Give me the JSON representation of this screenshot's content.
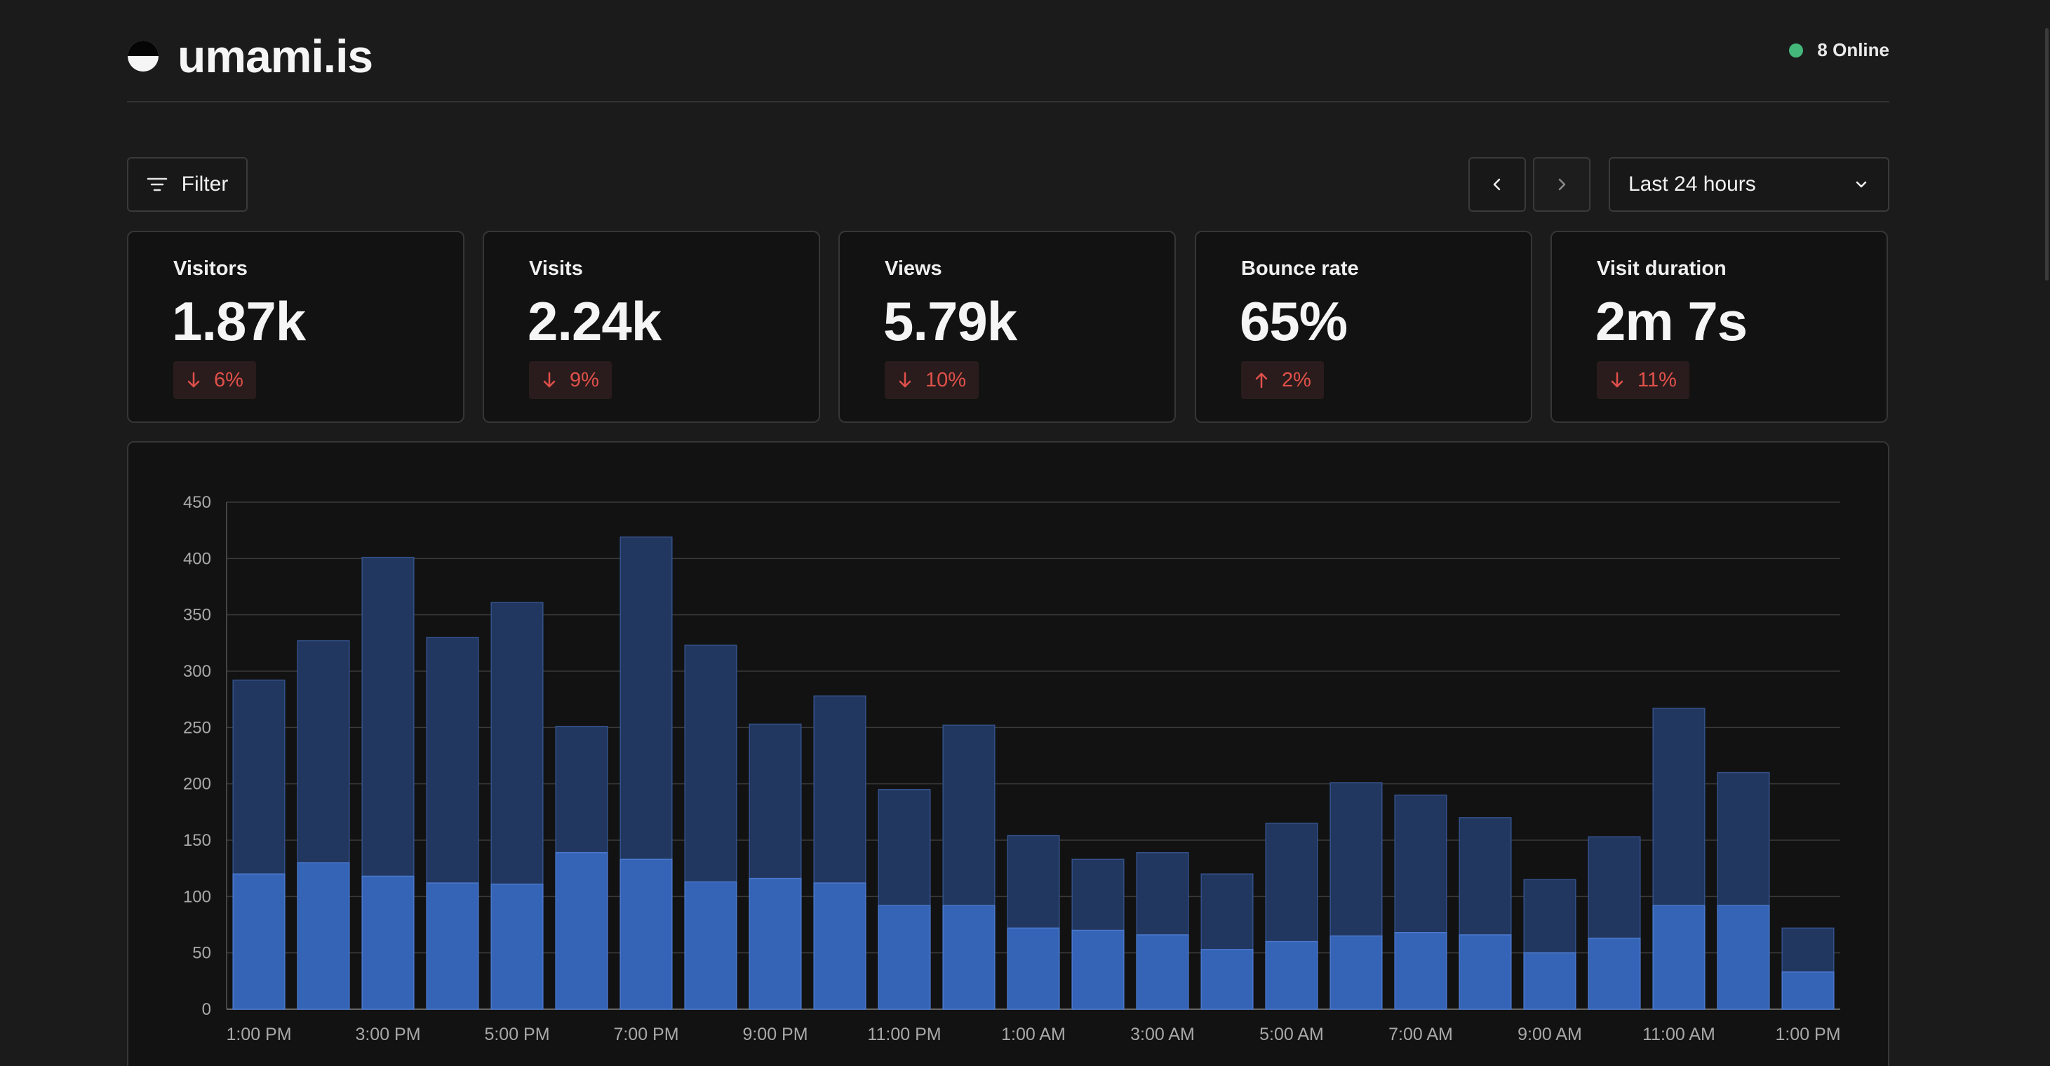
{
  "brand": {
    "name": "umami.is"
  },
  "online": {
    "label": "8 Online",
    "color": "#44b87b"
  },
  "toolbar": {
    "filter_label": "Filter",
    "icons": {
      "filter": "filter-icon",
      "prev": "chevron-left-icon",
      "next": "chevron-right-icon",
      "dropdown": "chevron-down-icon"
    },
    "date_range": "Last 24 hours"
  },
  "metrics": [
    {
      "label": "Visitors",
      "value": "1.87k",
      "change": "6%",
      "direction": "down"
    },
    {
      "label": "Visits",
      "value": "2.24k",
      "change": "9%",
      "direction": "down"
    },
    {
      "label": "Views",
      "value": "5.79k",
      "change": "10%",
      "direction": "down"
    },
    {
      "label": "Bounce rate",
      "value": "65%",
      "change": "2%",
      "direction": "up"
    },
    {
      "label": "Visit duration",
      "value": "2m 7s",
      "change": "11%",
      "direction": "down"
    }
  ],
  "colors": {
    "views_fill": "#22375f",
    "views_stroke": "#34518a",
    "visitors_fill": "#3564b6",
    "visitors_stroke": "#4a78cc",
    "negative": "#e0504a"
  },
  "chart_data": {
    "type": "bar",
    "stacked": "overlay",
    "ylim": [
      0,
      450
    ],
    "yticks": [
      0,
      50,
      100,
      150,
      200,
      250,
      300,
      350,
      400,
      450
    ],
    "grid": true,
    "x": [
      "1:00 PM",
      "2:00 PM",
      "3:00 PM",
      "4:00 PM",
      "5:00 PM",
      "6:00 PM",
      "7:00 PM",
      "8:00 PM",
      "9:00 PM",
      "10:00 PM",
      "11:00 PM",
      "12:00 AM",
      "1:00 AM",
      "2:00 AM",
      "3:00 AM",
      "4:00 AM",
      "5:00 AM",
      "6:00 AM",
      "7:00 AM",
      "8:00 AM",
      "9:00 AM",
      "10:00 AM",
      "11:00 AM",
      "12:00 PM",
      "1:00 PM"
    ],
    "xtick_labels": [
      "1:00 PM",
      "3:00 PM",
      "5:00 PM",
      "7:00 PM",
      "9:00 PM",
      "11:00 PM",
      "1:00 AM",
      "3:00 AM",
      "5:00 AM",
      "7:00 AM",
      "9:00 AM",
      "11:00 AM",
      "1:00 PM"
    ],
    "series": [
      {
        "values": [
          292,
          327,
          401,
          330,
          361,
          251,
          419,
          323,
          253,
          278,
          195,
          252,
          154,
          133,
          139,
          120,
          165,
          201,
          190,
          170,
          115,
          153,
          267,
          210,
          72
        ]
      },
      {
        "values": [
          120,
          130,
          118,
          112,
          111,
          139,
          133,
          113,
          116,
          112,
          92,
          92,
          72,
          70,
          66,
          53,
          60,
          65,
          68,
          66,
          50,
          63,
          92,
          92,
          33
        ]
      }
    ]
  }
}
